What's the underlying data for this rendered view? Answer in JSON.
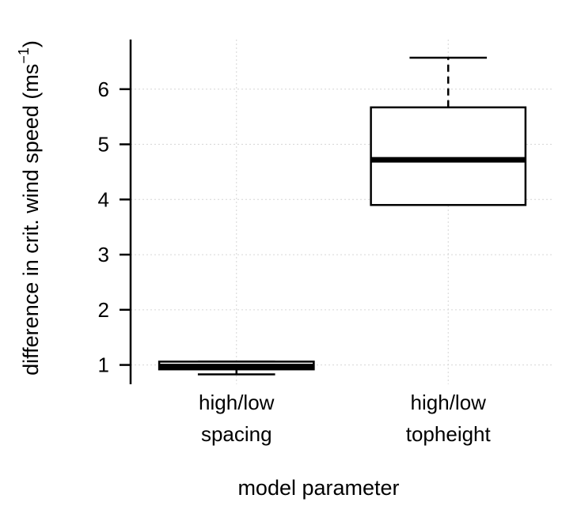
{
  "chart_data": {
    "type": "box",
    "title": "",
    "xlabel": "model parameter",
    "ylabel": {
      "text": "difference in crit. wind speed  (ms",
      "superscript": "−1",
      "suffix": ")"
    },
    "ylim": [
      0.65,
      6.9
    ],
    "yticks": [
      "1",
      "2",
      "3",
      "4",
      "5",
      "6"
    ],
    "grid": true,
    "categories": [
      {
        "lines": [
          "high/low",
          "spacing"
        ]
      },
      {
        "lines": [
          "high/low",
          "topheight"
        ]
      }
    ],
    "boxes": [
      {
        "whisker_low": 0.83,
        "q1": 0.92,
        "median": 0.97,
        "q3": 1.06,
        "whisker_high": 1.06
      },
      {
        "whisker_low": 3.9,
        "q1": 3.9,
        "median": 4.72,
        "q3": 5.67,
        "whisker_high": 6.57
      }
    ]
  }
}
